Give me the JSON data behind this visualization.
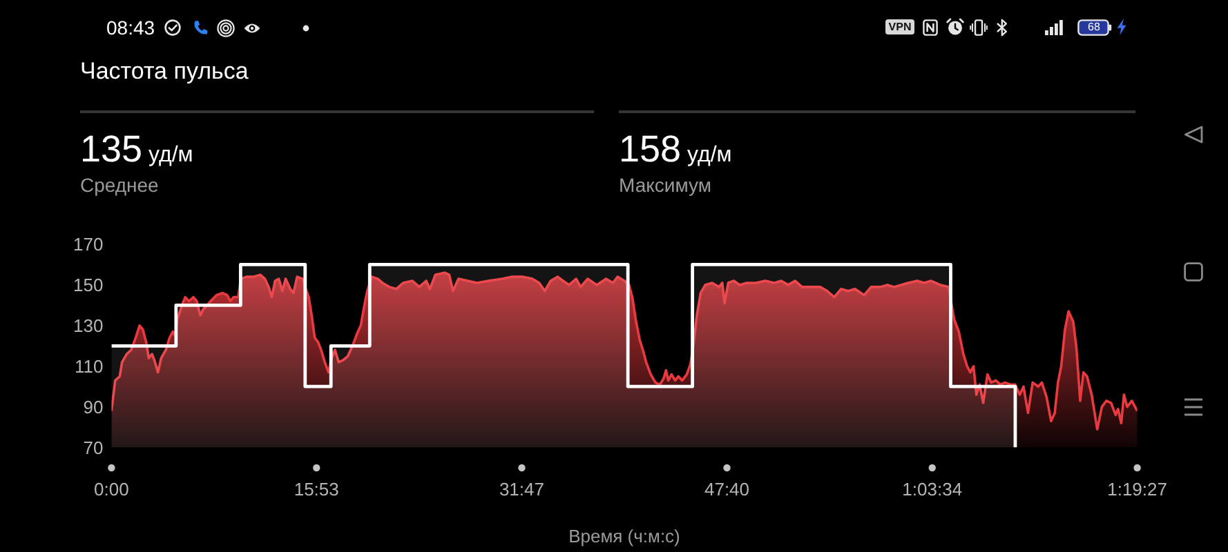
{
  "chart_data": {
    "type": "area",
    "title": "Частота пульса",
    "xlabel": "Время (ч:м:с)",
    "annotations": [
      "08:43",
      "VPN",
      "68",
      "135 уд/м",
      "Среднее",
      "158 уд/м",
      "Максимум"
    ],
    "xlim": [
      0,
      79.45
    ],
    "xticks": [
      {
        "value": 0,
        "label": "0:00"
      },
      {
        "value": 15.88,
        "label": "15:53"
      },
      {
        "value": 31.78,
        "label": "31:47"
      },
      {
        "value": 47.67,
        "label": "47:40"
      },
      {
        "value": 63.57,
        "label": "1:03:34"
      },
      {
        "value": 79.45,
        "label": "1:19:27"
      }
    ],
    "ylim": [
      70,
      170
    ],
    "yticks": [
      70,
      90,
      110,
      130,
      150,
      170
    ],
    "series": [
      {
        "type": "area",
        "color": "#ea3a3f",
        "x": [
          0,
          0.29,
          0.64,
          0.82,
          1.18,
          1.53,
          1.82,
          2.18,
          2.43,
          2.68,
          2.89,
          3.14,
          3.32,
          3.6,
          3.85,
          4.21,
          4.5,
          4.75,
          4.93,
          5.1,
          5.46,
          5.71,
          6.0,
          6.35,
          6.6,
          6.89,
          7.1,
          7.42,
          7.67,
          8.14,
          8.6,
          8.96,
          9.21,
          9.46,
          9.81,
          10.03,
          10.46,
          10.99,
          11.53,
          11.88,
          12.17,
          12.42,
          12.67,
          12.96,
          13.24,
          13.49,
          13.85,
          14.1,
          14.38,
          14.81,
          14.99,
          15.28,
          15.53,
          15.74,
          15.99,
          16.24,
          16.52,
          16.81,
          17.06,
          17.31,
          17.6,
          17.95,
          18.31,
          18.67,
          19.02,
          19.31,
          19.56,
          19.81,
          20.17,
          20.63,
          20.99,
          21.52,
          22.06,
          22.59,
          23.31,
          23.84,
          24.38,
          24.66,
          25.09,
          25.8,
          26.16,
          26.45,
          26.88,
          27.6,
          28.31,
          29.2,
          30.28,
          30.99,
          31.88,
          32.6,
          33.13,
          33.56,
          34.02,
          34.56,
          34.98,
          35.45,
          35.99,
          36.34,
          36.88,
          37.59,
          38.31,
          38.84,
          39.2,
          39.73,
          40.09,
          40.34,
          40.63,
          40.91,
          41.16,
          41.41,
          41.77,
          42.13,
          42.48,
          42.77,
          42.95,
          43.13,
          43.38,
          43.66,
          43.91,
          44.2,
          44.56,
          44.84,
          45.09,
          45.34,
          45.63,
          45.99,
          46.52,
          47.06,
          47.31,
          47.49,
          47.77,
          48.2,
          48.67,
          49.2,
          49.91,
          50.63,
          51.34,
          51.88,
          52.41,
          52.95,
          53.49,
          54.2,
          54.9,
          55.44,
          55.98,
          56.51,
          57.05,
          57.59,
          58.3,
          58.84,
          59.55,
          60.09,
          60.62,
          61.16,
          61.7,
          62.41,
          62.95,
          63.48,
          64.2,
          64.84,
          65.27,
          65.63,
          65.98,
          66.27,
          66.52,
          66.77,
          66.99,
          67.24,
          67.52,
          67.85,
          68.13,
          68.49,
          68.85,
          69.2,
          69.63,
          69.99,
          70.35,
          70.64,
          70.99,
          71.35,
          71.78,
          72.06,
          72.42,
          72.78,
          73.06,
          73.31,
          73.56,
          73.85,
          74.13,
          74.49,
          74.74,
          75.03,
          75.28,
          75.56,
          75.92,
          76.35,
          76.71,
          77.06,
          77.42,
          77.78,
          77.96,
          78.21,
          78.42,
          78.67,
          79.03,
          79.45
        ],
        "values": [
          88,
          103,
          105,
          112,
          116,
          118,
          123,
          130,
          128,
          122,
          114,
          116,
          113,
          107,
          114,
          118,
          124,
          127,
          125,
          133,
          140,
          144,
          142,
          144,
          142,
          135,
          138,
          140,
          142,
          145,
          146,
          145,
          142,
          144,
          144,
          153,
          154,
          154,
          155,
          153,
          149,
          144,
          152,
          153,
          147,
          153,
          148,
          146,
          154,
          153,
          149,
          144,
          134,
          124,
          122,
          118,
          112,
          107,
          114,
          118,
          112,
          113,
          115,
          120,
          126,
          130,
          139,
          147,
          154,
          153,
          151,
          149,
          148,
          151,
          152,
          149,
          152,
          148,
          155,
          156,
          155,
          147,
          153,
          152,
          151,
          152,
          153,
          154,
          154,
          153,
          151,
          147,
          152,
          154,
          152,
          150,
          153,
          149,
          153,
          150,
          153,
          151,
          154,
          152,
          150,
          144,
          132,
          123,
          118,
          112,
          106,
          102,
          101,
          104,
          108,
          103,
          106,
          103,
          105,
          103,
          106,
          111,
          121,
          135,
          146,
          150,
          151,
          149,
          151,
          141,
          151,
          152,
          150,
          151,
          151,
          152,
          151,
          152,
          150,
          152,
          149,
          149,
          149,
          147,
          144,
          148,
          147,
          148,
          145,
          149,
          149,
          150,
          149,
          150,
          151,
          152,
          151,
          152,
          150,
          149,
          133,
          127,
          116,
          110,
          107,
          110,
          96,
          101,
          92,
          106,
          102,
          103,
          101,
          102,
          101,
          101,
          96,
          100,
          87,
          102,
          100,
          102,
          95,
          83,
          87,
          102,
          110,
          128,
          137,
          132,
          119,
          93,
          107,
          105,
          96,
          79,
          90,
          93,
          92,
          86,
          89,
          82,
          96,
          90,
          93,
          88
        ]
      },
      {
        "type": "step",
        "color": "#ffffff",
        "x": [
          0,
          5,
          10,
          15,
          17,
          20,
          40,
          45,
          65,
          70
        ],
        "values": [
          120,
          140,
          160,
          100,
          120,
          160,
          100,
          160,
          100,
          70
        ]
      }
    ]
  }
}
